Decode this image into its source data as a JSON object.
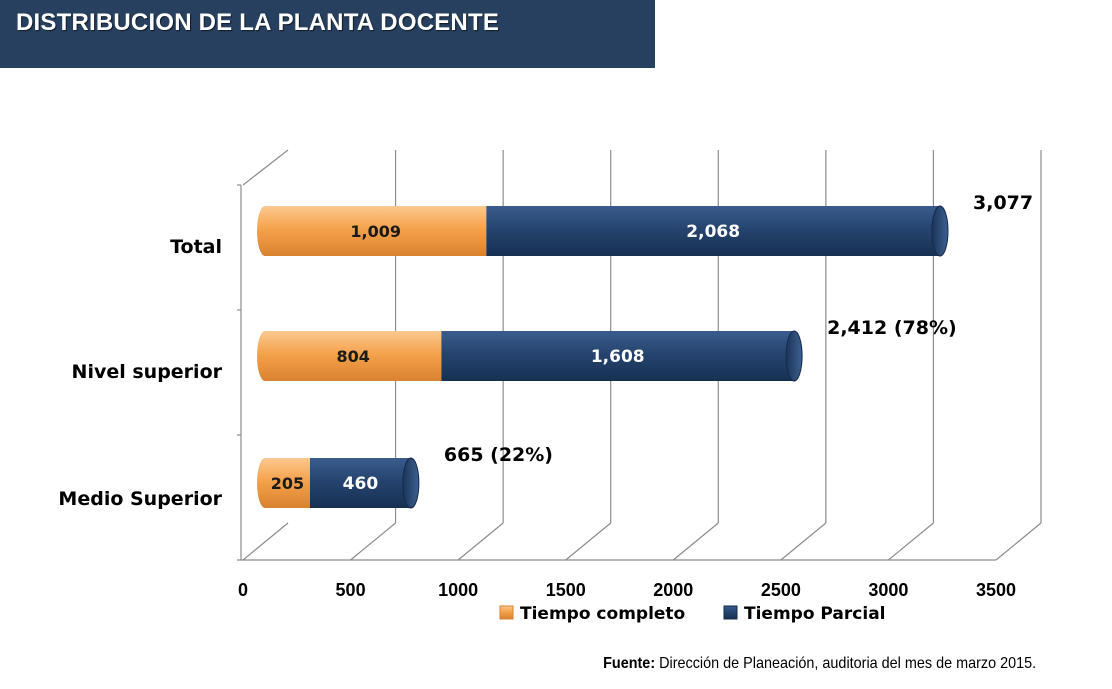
{
  "header": {
    "title": "DISTRIBUCION DE LA PLANTA DOCENTE"
  },
  "source": {
    "label": "Fuente:",
    "text": "Dirección de Planeación, auditoria del mes de marzo 2015."
  },
  "colors": {
    "tiempo_completo": "#f5a24c",
    "tiempo_parcial": "#25446f",
    "header_bg": "#27405f",
    "grid": "#8c8c8c"
  },
  "chart_data": {
    "type": "bar",
    "orientation": "horizontal",
    "stacked": true,
    "style": "3d-cylinder",
    "categories": [
      "Total",
      "Nivel superior",
      "Medio Superior"
    ],
    "series": [
      {
        "name": "Tiempo completo",
        "values": [
          1009,
          804,
          205
        ],
        "labels": [
          "1,009",
          "804",
          "205"
        ]
      },
      {
        "name": "Tiempo Parcial",
        "values": [
          2068,
          1608,
          460
        ],
        "labels": [
          "2,068",
          "1,608",
          "460"
        ]
      }
    ],
    "totals": [
      "3,077",
      "2,412 (78%)",
      "665 (22%)"
    ],
    "xlim": [
      0,
      3500
    ],
    "xticks": [
      "0",
      "500",
      "1000",
      "1500",
      "2000",
      "2500",
      "3000",
      "3500"
    ],
    "grid": true,
    "legend": "bottom"
  }
}
